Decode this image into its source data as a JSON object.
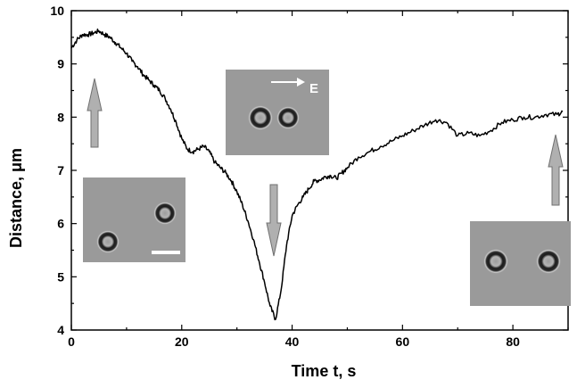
{
  "chart_data": {
    "type": "line",
    "xlabel": "Time t, s",
    "ylabel": "Distance, μm",
    "xlim": [
      0,
      90
    ],
    "ylim": [
      4,
      10
    ],
    "xticks": [
      0,
      20,
      40,
      60,
      80
    ],
    "yticks": [
      4,
      5,
      6,
      7,
      8,
      9,
      10
    ],
    "grid": false,
    "legend": "none",
    "line_color": "#000000",
    "series": [
      {
        "x": [
          0,
          1,
          2,
          3,
          4,
          5,
          6,
          7,
          8,
          9,
          10,
          11,
          12,
          13,
          14,
          15,
          16,
          17,
          18,
          19,
          20,
          21,
          22,
          23,
          24,
          25,
          26,
          27,
          28,
          29,
          30,
          31,
          32,
          33,
          34,
          35,
          36,
          37,
          38,
          39,
          40,
          41,
          42,
          43,
          44,
          45,
          46,
          47,
          48,
          49,
          50,
          52,
          54,
          56,
          58,
          60,
          62,
          64,
          66,
          68,
          70,
          72,
          74,
          76,
          78,
          80,
          82,
          84,
          86,
          88,
          89
        ],
        "y": [
          9.3,
          9.45,
          9.55,
          9.55,
          9.58,
          9.62,
          9.55,
          9.5,
          9.4,
          9.3,
          9.2,
          9.05,
          8.95,
          8.8,
          8.7,
          8.6,
          8.5,
          8.35,
          8.15,
          7.9,
          7.6,
          7.4,
          7.35,
          7.4,
          7.45,
          7.35,
          7.15,
          7.05,
          6.95,
          6.8,
          6.6,
          6.35,
          6.05,
          5.7,
          5.3,
          4.9,
          4.45,
          4.2,
          4.75,
          5.6,
          6.15,
          6.35,
          6.5,
          6.65,
          6.8,
          6.82,
          6.88,
          6.9,
          6.85,
          6.95,
          7.05,
          7.25,
          7.35,
          7.45,
          7.55,
          7.65,
          7.75,
          7.85,
          7.95,
          7.9,
          7.65,
          7.7,
          7.65,
          7.75,
          7.9,
          7.95,
          8.0,
          8.0,
          8.05,
          8.05,
          8.1
        ]
      }
    ]
  },
  "annotations": {
    "arrow_color": "#b0b0b0",
    "field_label": "E",
    "micrograph_bg": "#9a9a9a"
  }
}
